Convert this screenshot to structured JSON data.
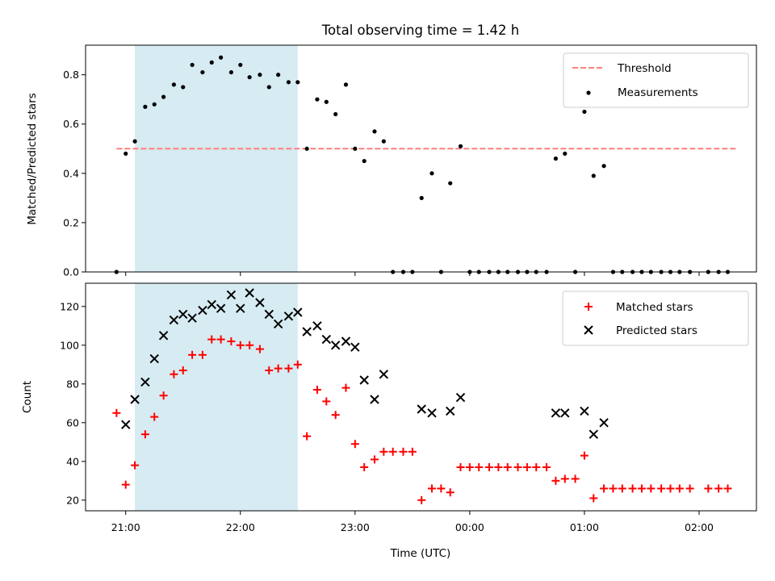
{
  "chart_data": {
    "type": "scatter",
    "title": "Total observing time = 1.42 h",
    "xlabel": "Time (UTC)",
    "x_ticks": [
      "21:00",
      "22:00",
      "23:00",
      "00:00",
      "01:00",
      "02:00"
    ],
    "x_range_hours": [
      20.65,
      26.5
    ],
    "observing_window_hours": [
      21.08,
      22.5
    ],
    "observing_window_color": "#add8e6",
    "panels": [
      {
        "name": "ratio",
        "ylabel": "Matched/Predicted stars",
        "ylim": [
          0,
          0.92
        ],
        "yticks": [
          "0.0",
          "0.2",
          "0.4",
          "0.6",
          "0.8"
        ],
        "threshold": {
          "name": "Threshold",
          "value": 0.5,
          "x_range": [
            20.92,
            26.33
          ],
          "color": "#ff7f7f",
          "style": "dashed"
        },
        "series": [
          {
            "name": "Measurements",
            "color": "#000000",
            "marker": "dot",
            "x": [
              20.92,
              21.0,
              21.08,
              21.17,
              21.25,
              21.33,
              21.42,
              21.5,
              21.58,
              21.67,
              21.75,
              21.83,
              21.92,
              22.0,
              22.08,
              22.17,
              22.25,
              22.33,
              22.42,
              22.5,
              22.58,
              22.67,
              22.75,
              22.83,
              22.92,
              23.0,
              23.08,
              23.17,
              23.25,
              23.33,
              23.42,
              23.5,
              23.58,
              23.67,
              23.75,
              23.83,
              23.92,
              24.0,
              24.08,
              24.17,
              24.25,
              24.33,
              24.42,
              24.5,
              24.58,
              24.67,
              24.75,
              24.83,
              24.92,
              25.0,
              25.08,
              25.17,
              25.25,
              25.33,
              25.42,
              25.5,
              25.58,
              25.67,
              25.75,
              25.83,
              25.92,
              26.08,
              26.17,
              26.25
            ],
            "y": [
              0.0,
              0.48,
              0.53,
              0.67,
              0.68,
              0.71,
              0.76,
              0.75,
              0.84,
              0.81,
              0.85,
              0.87,
              0.81,
              0.84,
              0.79,
              0.8,
              0.75,
              0.8,
              0.77,
              0.77,
              0.5,
              0.7,
              0.69,
              0.64,
              0.76,
              0.5,
              0.45,
              0.57,
              0.53,
              0.0,
              0.0,
              0.0,
              0.3,
              0.4,
              0.0,
              0.36,
              0.51,
              0.0,
              0.0,
              0.0,
              0.0,
              0.0,
              0.0,
              0.0,
              0.0,
              0.0,
              0.46,
              0.48,
              0.0,
              0.65,
              0.39,
              0.43,
              0.0,
              0.0,
              0.0,
              0.0,
              0.0,
              0.0,
              0.0,
              0.0,
              0.0,
              0.0,
              0.0,
              0.0
            ]
          }
        ],
        "legend_position": "upper right"
      },
      {
        "name": "counts",
        "ylabel": "Count",
        "ylim": [
          14.5,
          132
        ],
        "yticks": [
          "20",
          "40",
          "60",
          "80",
          "100",
          "120"
        ],
        "series": [
          {
            "name": "Matched stars",
            "color": "#ff0000",
            "marker": "plus",
            "x": [
              20.92,
              21.0,
              21.08,
              21.17,
              21.25,
              21.33,
              21.42,
              21.5,
              21.58,
              21.67,
              21.75,
              21.83,
              21.92,
              22.0,
              22.08,
              22.17,
              22.25,
              22.33,
              22.42,
              22.5,
              22.58,
              22.67,
              22.75,
              22.83,
              22.92,
              23.0,
              23.08,
              23.17,
              23.25,
              23.33,
              23.42,
              23.5,
              23.58,
              23.67,
              23.75,
              23.83,
              23.92,
              24.0,
              24.08,
              24.17,
              24.25,
              24.33,
              24.42,
              24.5,
              24.58,
              24.67,
              24.75,
              24.83,
              24.92,
              25.0,
              25.08,
              25.17,
              25.25,
              25.33,
              25.42,
              25.5,
              25.58,
              25.67,
              25.75,
              25.83,
              25.92,
              26.08,
              26.17,
              26.25
            ],
            "y": [
              65,
              28,
              38,
              54,
              63,
              74,
              85,
              87,
              95,
              95,
              103,
              103,
              102,
              100,
              100,
              98,
              87,
              88,
              88,
              90,
              53,
              77,
              71,
              64,
              78,
              49,
              37,
              41,
              45,
              45,
              45,
              45,
              20,
              26,
              26,
              24,
              37,
              37,
              37,
              37,
              37,
              37,
              37,
              37,
              37,
              37,
              30,
              31,
              31,
              43,
              21,
              26,
              26,
              26,
              26,
              26,
              26,
              26,
              26,
              26,
              26,
              26,
              26,
              26
            ]
          },
          {
            "name": "Predicted stars",
            "color": "#000000",
            "marker": "x",
            "x": [
              21.0,
              21.08,
              21.17,
              21.25,
              21.33,
              21.42,
              21.5,
              21.58,
              21.67,
              21.75,
              21.83,
              21.92,
              22.0,
              22.08,
              22.17,
              22.25,
              22.33,
              22.42,
              22.5,
              22.58,
              22.67,
              22.75,
              22.83,
              22.92,
              23.0,
              23.08,
              23.17,
              23.25,
              23.58,
              23.67,
              23.83,
              23.92,
              24.75,
              24.83,
              25.0,
              25.08,
              25.17
            ],
            "y": [
              59,
              72,
              81,
              93,
              105,
              113,
              116,
              114,
              118,
              121,
              119,
              126,
              119,
              127,
              122,
              116,
              111,
              115,
              117,
              107,
              110,
              103,
              100,
              102,
              99,
              82,
              72,
              85,
              67,
              65,
              66,
              73,
              65,
              65,
              66,
              54,
              60
            ]
          }
        ],
        "legend_position": "upper right"
      }
    ]
  }
}
